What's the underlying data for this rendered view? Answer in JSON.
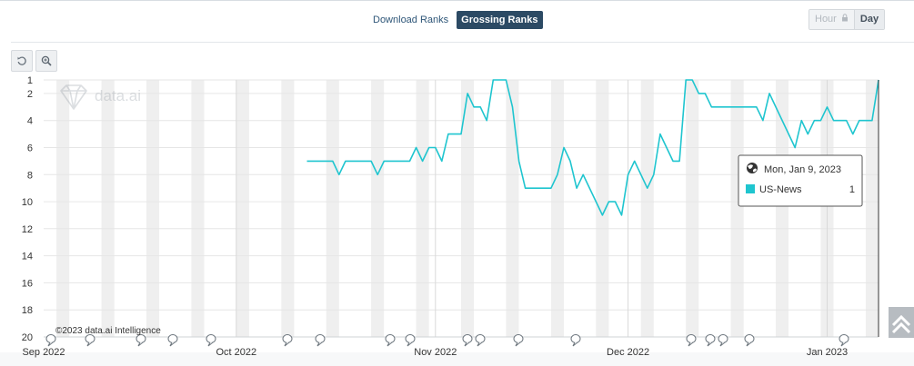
{
  "tabs": {
    "download_label": "Download Ranks",
    "grossing_label": "Grossing Ranks"
  },
  "granularity": {
    "hour_label": "Hour",
    "day_label": "Day"
  },
  "watermark": "data.ai",
  "copyright": "©2023 data.ai Intelligence",
  "tooltip": {
    "date": "Mon, Jan 9, 2023",
    "series_name": "US-News",
    "value": "1"
  },
  "colors": {
    "series": "#1fc5cf",
    "active_tab": "#2c4a64",
    "tooltip_swatch": "#1fc5cf"
  },
  "chart_data": {
    "type": "line",
    "x_axis": {
      "labels": [
        "Sep 2022",
        "Oct 2022",
        "Nov 2022",
        "Dec 2022",
        "Jan 2023"
      ],
      "range": [
        "2022-09-01",
        "2023-01-09"
      ]
    },
    "y_axis": {
      "reversed": true,
      "ylim": [
        1,
        20
      ],
      "ticks": [
        1,
        2,
        4,
        6,
        8,
        10,
        12,
        14,
        16,
        18,
        20
      ]
    },
    "grid": true,
    "series": [
      {
        "name": "US-News",
        "points": [
          [
            "2022-10-12",
            7
          ],
          [
            "2022-10-16",
            7
          ],
          [
            "2022-10-17",
            8
          ],
          [
            "2022-10-18",
            7
          ],
          [
            "2022-10-22",
            7
          ],
          [
            "2022-10-23",
            8
          ],
          [
            "2022-10-24",
            7
          ],
          [
            "2022-10-28",
            7
          ],
          [
            "2022-10-29",
            6
          ],
          [
            "2022-10-30",
            7
          ],
          [
            "2022-10-31",
            6
          ],
          [
            "2022-11-01",
            6
          ],
          [
            "2022-11-02",
            7
          ],
          [
            "2022-11-03",
            5
          ],
          [
            "2022-11-05",
            5
          ],
          [
            "2022-11-06",
            2
          ],
          [
            "2022-11-07",
            3
          ],
          [
            "2022-11-08",
            3
          ],
          [
            "2022-11-09",
            4
          ],
          [
            "2022-11-10",
            1
          ],
          [
            "2022-11-12",
            1
          ],
          [
            "2022-11-13",
            3
          ],
          [
            "2022-11-14",
            7
          ],
          [
            "2022-11-15",
            9
          ],
          [
            "2022-11-19",
            9
          ],
          [
            "2022-11-20",
            8
          ],
          [
            "2022-11-21",
            6
          ],
          [
            "2022-11-22",
            7
          ],
          [
            "2022-11-23",
            9
          ],
          [
            "2022-11-24",
            8
          ],
          [
            "2022-11-27",
            11
          ],
          [
            "2022-11-28",
            10
          ],
          [
            "2022-11-29",
            10
          ],
          [
            "2022-11-30",
            11
          ],
          [
            "2022-12-01",
            8
          ],
          [
            "2022-12-02",
            7
          ],
          [
            "2022-12-04",
            9
          ],
          [
            "2022-12-05",
            8
          ],
          [
            "2022-12-06",
            5
          ],
          [
            "2022-12-08",
            7
          ],
          [
            "2022-12-09",
            7
          ],
          [
            "2022-12-10",
            1
          ],
          [
            "2022-12-11",
            1
          ],
          [
            "2022-12-12",
            2
          ],
          [
            "2022-12-13",
            2
          ],
          [
            "2022-12-14",
            3
          ],
          [
            "2022-12-21",
            3
          ],
          [
            "2022-12-22",
            4
          ],
          [
            "2022-12-23",
            2
          ],
          [
            "2022-12-27",
            6
          ],
          [
            "2022-12-28",
            4
          ],
          [
            "2022-12-29",
            5
          ],
          [
            "2022-12-30",
            4
          ],
          [
            "2022-12-31",
            4
          ],
          [
            "2023-01-01",
            3
          ],
          [
            "2023-01-02",
            4
          ],
          [
            "2023-01-04",
            4
          ],
          [
            "2023-01-05",
            5
          ],
          [
            "2023-01-06",
            4
          ],
          [
            "2023-01-08",
            4
          ],
          [
            "2023-01-09",
            1
          ]
        ]
      }
    ]
  }
}
